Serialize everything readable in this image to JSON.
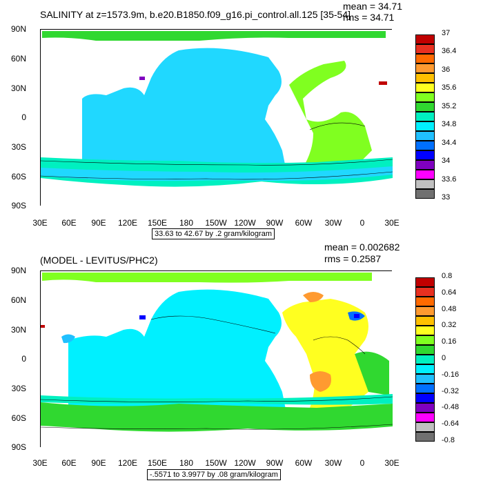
{
  "panel1": {
    "title": "SALINITY at z=1573.9m, b.e20.B1850.f09_g16.pi_control.all.125 [35-54]",
    "mean": "mean = 34.71",
    "rms": "rms = 34.71",
    "range": "33.63 to 42.67 by .2 gram/kilogram",
    "colorbar": {
      "labels": [
        "37",
        "36.4",
        "36",
        "35.6",
        "35.2",
        "34.8",
        "34.4",
        "34",
        "33.6",
        "33"
      ],
      "colors": [
        "#c00000",
        "#e83020",
        "#ff6a00",
        "#ff9a30",
        "#ffc000",
        "#ffff20",
        "#80ff20",
        "#30d830",
        "#00f0c0",
        "#00f0ff",
        "#20c0ff",
        "#0070ff",
        "#0000ff",
        "#8000c0",
        "#ff00ff",
        "#c0c0c0",
        "#707070"
      ]
    }
  },
  "panel2": {
    "title": "(MODEL - LEVITUS/PHC2)",
    "mean": "mean = 0.002682",
    "rms": "rms = 0.2587",
    "range": "-.5571 to 3.9977 by .08 gram/kilogram",
    "colorbar": {
      "labels": [
        "0.8",
        "0.64",
        "0.48",
        "0.32",
        "0.16",
        "0",
        "-0.16",
        "-0.32",
        "-0.48",
        "-0.64",
        "-0.8"
      ],
      "colors": [
        "#c00000",
        "#e83020",
        "#ff6a00",
        "#ff9a30",
        "#ffc000",
        "#ffff20",
        "#80ff20",
        "#30d830",
        "#00f0c0",
        "#00f0ff",
        "#20c0ff",
        "#0070ff",
        "#0000ff",
        "#8000c0",
        "#ff00ff",
        "#c0c0c0",
        "#707070"
      ]
    }
  },
  "axes": {
    "lat_labels": [
      "90N",
      "60N",
      "30N",
      "0",
      "30S",
      "60S",
      "90S"
    ],
    "lon_labels": [
      "30E",
      "60E",
      "90E",
      "120E",
      "150E",
      "180",
      "150W",
      "120W",
      "90W",
      "60W",
      "30W",
      "0",
      "30E"
    ]
  }
}
